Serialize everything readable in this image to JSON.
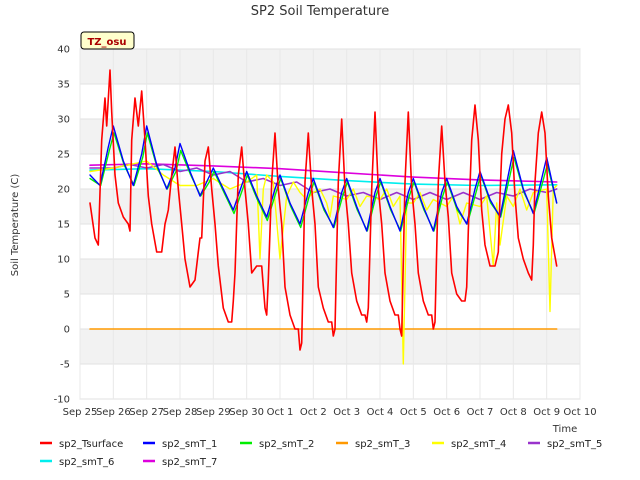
{
  "chart_data": {
    "type": "line",
    "title": "SP2 Soil Temperature",
    "xlabel": "Time",
    "ylabel": "Soil Temperature (C)",
    "site_label": "TZ_osu",
    "ylim": [
      -10,
      40
    ],
    "yticks": [
      -10,
      -5,
      0,
      5,
      10,
      15,
      20,
      25,
      30,
      35,
      40
    ],
    "xlim": [
      0,
      15
    ],
    "xticks": [
      0,
      1,
      2,
      3,
      4,
      5,
      6,
      7,
      8,
      9,
      10,
      11,
      12,
      13,
      14,
      15
    ],
    "xtick_labels": [
      "Sep 25",
      "Sep 26",
      "Sep 27",
      "Sep 28",
      "Sep 29",
      "Sep 30",
      "Oct 1",
      "Oct 2",
      "Oct 3",
      "Oct 4",
      "Oct 5",
      "Oct 6",
      "Oct 7",
      "Oct 8",
      "Oct 9",
      "Oct 10"
    ],
    "daily_peak_hour_fraction": 0.6,
    "series": [
      {
        "name": "sp2_Tsurface",
        "color": "#ff0000",
        "width": 1.6,
        "x": [
          0.3,
          0.45,
          0.55,
          0.65,
          0.75,
          0.8,
          0.9,
          0.95,
          1.05,
          1.15,
          1.3,
          1.45,
          1.5,
          1.55,
          1.65,
          1.75,
          1.85,
          1.95,
          2.05,
          2.15,
          2.3,
          2.45,
          2.55,
          2.6,
          2.65,
          2.75,
          2.85,
          2.95,
          3.05,
          3.15,
          3.3,
          3.45,
          3.55,
          3.6,
          3.65,
          3.75,
          3.85,
          3.95,
          4.05,
          4.15,
          4.3,
          4.45,
          4.55,
          4.6,
          4.65,
          4.75,
          4.85,
          4.95,
          5.05,
          5.15,
          5.3,
          5.45,
          5.55,
          5.6,
          5.65,
          5.75,
          5.85,
          5.95,
          6.05,
          6.15,
          6.3,
          6.45,
          6.55,
          6.6,
          6.65,
          6.75,
          6.85,
          6.95,
          7.05,
          7.15,
          7.3,
          7.45,
          7.55,
          7.6,
          7.65,
          7.75,
          7.85,
          7.95,
          8.05,
          8.15,
          8.3,
          8.45,
          8.55,
          8.6,
          8.65,
          8.75,
          8.85,
          8.95,
          9.05,
          9.15,
          9.3,
          9.45,
          9.55,
          9.6,
          9.65,
          9.75,
          9.85,
          9.95,
          10.05,
          10.15,
          10.3,
          10.45,
          10.55,
          10.6,
          10.65,
          10.75,
          10.85,
          10.95,
          11.05,
          11.15,
          11.3,
          11.45,
          11.55,
          11.6,
          11.65,
          11.75,
          11.85,
          11.95,
          12.05,
          12.15,
          12.3,
          12.45,
          12.55,
          12.6,
          12.65,
          12.75,
          12.85,
          12.95,
          13.05,
          13.15,
          13.3,
          13.45,
          13.55,
          13.6,
          13.65,
          13.75,
          13.85,
          13.95,
          14.05,
          14.15,
          14.3
        ],
        "y": [
          18,
          13,
          12,
          27,
          33,
          29,
          37,
          31,
          22,
          18,
          16,
          15,
          14,
          27,
          33,
          29,
          34,
          27,
          19,
          15,
          11,
          11,
          15,
          16,
          17,
          22,
          26,
          20,
          15,
          10,
          6,
          7,
          11,
          13,
          13,
          24,
          26,
          20,
          15,
          9,
          3,
          1,
          1,
          4,
          8,
          22,
          26,
          20,
          15,
          8,
          9,
          9,
          3,
          2,
          7,
          21,
          28,
          20,
          15,
          6,
          2,
          0,
          0,
          -3,
          -2,
          21,
          28,
          20,
          15,
          6,
          3,
          1,
          1,
          -1,
          0,
          21,
          30,
          20,
          15,
          8,
          4,
          2,
          2,
          1,
          3,
          20,
          31,
          20,
          15,
          8,
          4,
          2,
          2,
          0,
          -1,
          21,
          31,
          20,
          15,
          8,
          4,
          2,
          2,
          0,
          1,
          21,
          29,
          21,
          16,
          8,
          5,
          4,
          4,
          6,
          14,
          27,
          32,
          27,
          17,
          12,
          9,
          9,
          11,
          19,
          25,
          30,
          32,
          28,
          19,
          13,
          10,
          8,
          7,
          12,
          21,
          28,
          31,
          28,
          19,
          13,
          9
        ]
      },
      {
        "name": "sp2_smT_1",
        "color": "#0000ff",
        "width": 1.4,
        "x": [
          0.3,
          0.6,
          0.85,
          1.0,
          1.3,
          1.6,
          1.85,
          2.0,
          2.3,
          2.6,
          2.85,
          3.0,
          3.3,
          3.6,
          3.85,
          4.0,
          4.3,
          4.6,
          4.85,
          5.0,
          5.3,
          5.6,
          5.85,
          6.0,
          6.3,
          6.6,
          6.85,
          7.0,
          7.3,
          7.6,
          7.85,
          8.0,
          8.3,
          8.6,
          8.85,
          9.0,
          9.3,
          9.6,
          9.85,
          10.0,
          10.3,
          10.6,
          10.85,
          11.0,
          11.3,
          11.6,
          11.85,
          12.0,
          12.3,
          12.6,
          12.85,
          13.0,
          13.3,
          13.6,
          13.85,
          14.0,
          14.3
        ],
        "y": [
          22,
          20.5,
          26,
          29,
          24,
          20.5,
          25,
          29,
          23.5,
          20,
          23,
          26.5,
          22.5,
          19,
          21.5,
          23,
          20,
          17,
          20.5,
          22.5,
          19,
          16,
          20,
          22,
          18,
          15,
          19.5,
          21.5,
          17.5,
          14.5,
          19.5,
          21.5,
          17.5,
          14,
          19.5,
          21.5,
          17.5,
          14,
          19.5,
          21.5,
          17.5,
          14,
          19.5,
          21.5,
          17.5,
          15,
          20,
          22.5,
          18.5,
          16,
          22,
          25.5,
          20,
          16.5,
          21.5,
          24.5,
          18
        ]
      },
      {
        "name": "sp2_smT_2",
        "color": "#00ee00",
        "width": 1.4,
        "x": [
          0.3,
          0.62,
          0.88,
          1.02,
          1.32,
          1.62,
          1.88,
          2.02,
          2.32,
          2.62,
          2.88,
          3.02,
          3.32,
          3.62,
          3.88,
          4.02,
          4.32,
          4.62,
          4.88,
          5.02,
          5.32,
          5.62,
          5.88,
          6.02,
          6.32,
          6.62,
          6.88,
          7.02,
          7.32,
          7.62,
          7.88,
          8.02,
          8.32,
          8.62,
          8.88,
          9.02,
          9.32,
          9.62,
          9.88,
          10.02,
          10.32,
          10.62,
          10.88,
          11.02,
          11.32,
          11.62,
          11.88,
          12.02,
          12.32,
          12.62,
          12.88,
          13.02,
          13.32,
          13.62,
          13.88,
          14.02,
          14.3
        ],
        "y": [
          21.5,
          20.5,
          25.5,
          28,
          23.5,
          20.5,
          24.5,
          28,
          23,
          20,
          22.5,
          25.5,
          22,
          19,
          21,
          22.5,
          19.5,
          16.5,
          20,
          22,
          18.5,
          15.5,
          19.5,
          21.5,
          17.5,
          14.5,
          19,
          21,
          17,
          14.5,
          19,
          21,
          17,
          14,
          19,
          21,
          17,
          14,
          19,
          21,
          17,
          14,
          19,
          21,
          17,
          15,
          19.5,
          22,
          18,
          16,
          21.5,
          24.5,
          19.5,
          16.5,
          21,
          23.5,
          18
        ]
      },
      {
        "name": "sp2_smT_3",
        "color": "#ff9900",
        "width": 1.6,
        "x": [
          0.3,
          14.3
        ],
        "y": [
          0,
          0
        ]
      },
      {
        "name": "sp2_smT_4",
        "color": "#ffff00",
        "width": 1.4,
        "x": [
          0.3,
          1.0,
          2.0,
          2.5,
          3.0,
          3.5,
          4.0,
          4.5,
          5.0,
          5.3,
          5.4,
          5.5,
          5.6,
          5.8,
          6.0,
          6.2,
          6.4,
          6.6,
          6.8,
          7.0,
          7.2,
          7.4,
          7.5,
          7.6,
          8.0,
          8.2,
          8.4,
          8.6,
          9.0,
          9.2,
          9.4,
          9.6,
          9.7,
          9.8,
          10.0,
          10.2,
          10.4,
          10.6,
          11.0,
          11.2,
          11.4,
          11.6,
          12.0,
          12.2,
          12.4,
          12.5,
          12.6,
          12.8,
          13.0,
          13.2,
          13.4,
          13.6,
          14.0,
          14.1,
          14.2,
          14.3
        ],
        "y": [
          22.5,
          23,
          24,
          22,
          20.5,
          20.5,
          21.5,
          20,
          21,
          22,
          10,
          20,
          22,
          21,
          10,
          19,
          21,
          19.5,
          18.5,
          19.5,
          20,
          18,
          16,
          19,
          18.5,
          20,
          17.5,
          19,
          18.5,
          20,
          17.5,
          19,
          -5,
          18,
          18,
          19.5,
          17,
          18.5,
          17.5,
          19,
          15,
          18,
          17.5,
          19,
          9,
          18,
          12,
          19,
          17.5,
          20,
          17,
          19.5,
          20,
          2.5,
          20,
          20.5
        ]
      },
      {
        "name": "sp2_smT_5",
        "color": "#9933cc",
        "width": 1.6,
        "x": [
          0.3,
          1.0,
          1.5,
          2.0,
          2.5,
          3.0,
          3.5,
          4.0,
          4.5,
          5.0,
          5.5,
          6.0,
          6.5,
          7.0,
          7.5,
          8.0,
          8.5,
          9.0,
          9.5,
          10.0,
          10.5,
          11.0,
          11.5,
          12.0,
          12.5,
          13.0,
          13.5,
          14.0,
          14.3
        ],
        "y": [
          23,
          23,
          23.5,
          23,
          23.5,
          22.5,
          23,
          22,
          22.5,
          21,
          21.5,
          20.5,
          21,
          19.5,
          20,
          19,
          19.5,
          18.5,
          19.5,
          18.5,
          19.5,
          18.5,
          19.5,
          18.5,
          19.5,
          19,
          20,
          19.5,
          20
        ]
      },
      {
        "name": "sp2_smT_6",
        "color": "#00eeee",
        "width": 1.6,
        "x": [
          0.3,
          2.0,
          4.0,
          6.0,
          8.0,
          10.0,
          12.0,
          14.3
        ],
        "y": [
          22.7,
          22.9,
          22.5,
          21.8,
          21.2,
          20.7,
          20.5,
          20.6
        ]
      },
      {
        "name": "sp2_smT_7",
        "color": "#dd00dd",
        "width": 1.6,
        "x": [
          0.3,
          2.0,
          4.0,
          6.0,
          8.0,
          10.0,
          12.0,
          14.3
        ],
        "y": [
          23.4,
          23.6,
          23.3,
          22.9,
          22.3,
          21.7,
          21.3,
          21.0
        ]
      }
    ],
    "legend": {
      "placement": "bottom",
      "entries": [
        "sp2_Tsurface",
        "sp2_smT_1",
        "sp2_smT_2",
        "sp2_smT_3",
        "sp2_smT_4",
        "sp2_smT_5",
        "sp2_smT_6",
        "sp2_smT_7"
      ]
    }
  }
}
